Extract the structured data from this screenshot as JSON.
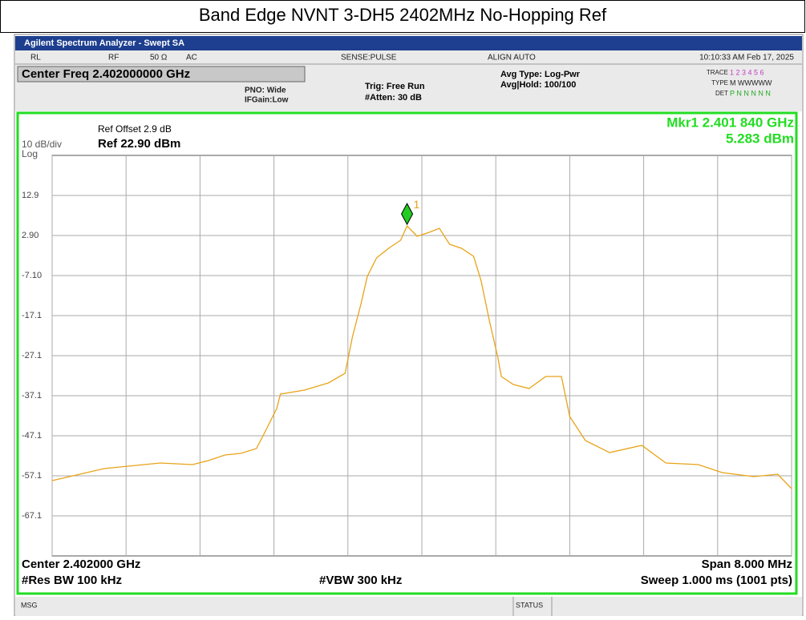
{
  "chart_data": {
    "type": "line",
    "title": "Band Edge NVNT 3-DH5 2402MHz No-Hopping Ref",
    "x": [
      2.398,
      2.3983,
      2.39856,
      2.39882,
      2.39917,
      2.39952,
      2.39969,
      2.39987,
      2.40004,
      2.40021,
      2.4003,
      2.40043,
      2.40047,
      2.40073,
      2.40099,
      2.40117,
      2.40125,
      2.40134,
      2.40141,
      2.40151,
      2.40164,
      2.40177,
      2.40184,
      2.40195,
      2.40208,
      2.40219,
      2.4023,
      2.40243,
      2.40256,
      2.40264,
      2.40273,
      2.40282,
      2.40286,
      2.40299,
      2.40316,
      2.40334,
      2.40351,
      2.4036,
      2.40377,
      2.40403,
      2.40438,
      2.40464,
      2.40499,
      2.40525,
      2.40559,
      2.40585,
      2.406
    ],
    "series": [
      {
        "color": "#e8a317",
        "values": [
          -58.3,
          -56.7,
          -55.3,
          -54.7,
          -53.9,
          -54.3,
          -53.3,
          -51.9,
          -51.5,
          -50.3,
          -46.3,
          -40.3,
          -36.7,
          -35.7,
          -33.9,
          -31.5,
          -22.3,
          -14.3,
          -7.3,
          -2.7,
          -0.3,
          1.7,
          5.283,
          2.7,
          3.7,
          4.7,
          0.7,
          -0.3,
          -2.3,
          -8.3,
          -18.3,
          -27.3,
          -32.3,
          -34.3,
          -35.3,
          -32.3,
          -32.3,
          -42.3,
          -48.3,
          -51.3,
          -49.5,
          -53.9,
          -54.3,
          -56.3,
          -57.3,
          -56.7,
          -60.3
        ]
      }
    ],
    "xlim": [
      2.398,
      2.406
    ],
    "xticks": [
      2.398,
      2.3988,
      2.3996,
      2.4004,
      2.4012,
      2.402,
      2.4028,
      2.4036,
      2.4044,
      2.4052,
      2.406
    ],
    "ylim": [
      -77.1,
      22.9
    ],
    "yticks": [
      12.9,
      {
        "value": 2.9,
        "label": "2.90"
      },
      {
        "value": -7.1,
        "label": "-7.10"
      },
      -17.1,
      -27.1,
      -37.1,
      -47.1,
      -57.1,
      -67.1
    ],
    "grid": true,
    "marker": {
      "x": 2.40184,
      "y": 5.283,
      "label": "1",
      "color": "#22cc22"
    }
  },
  "ui": {
    "app_title": "Agilent Spectrum Analyzer - Swept SA",
    "rl": "RL",
    "rf": "RF",
    "impedance": "50 Ω",
    "coupling": "AC",
    "sense": "SENSE:PULSE",
    "align": "ALIGN AUTO",
    "datetime": "10:10:33 AM Feb 17, 2025",
    "center_freq": "Center Freq 2.402000000 GHz",
    "pno": "PNO: Wide",
    "ifgain": "IFGain:Low",
    "trig": "Trig: Free Run",
    "atten": "#Atten: 30 dB",
    "avg_type": "Avg Type: Log-Pwr",
    "avg_hold": "Avg|Hold: 100/100",
    "trace_label": "TRACE",
    "trace_nums": "1 2 3 4 5 6",
    "type_label": "TYPE",
    "type_vals": "M WWWWW",
    "det_label": "DET",
    "det_vals": "P N N N N N",
    "ref_offset": "Ref Offset 2.9 dB",
    "scale": "10 dB/div",
    "ref_level": "Ref 22.90 dBm",
    "log": "Log",
    "mkr_freq": "Mkr1 2.401 840 GHz",
    "mkr_level": "5.283 dBm",
    "center": "Center 2.402000 GHz",
    "span": "Span 8.000 MHz",
    "rbw": "#Res BW 100 kHz",
    "vbw": "#VBW 300 kHz",
    "sweep": "Sweep  1.000 ms (1001 pts)",
    "msg": "MSG",
    "status": "STATUS"
  }
}
